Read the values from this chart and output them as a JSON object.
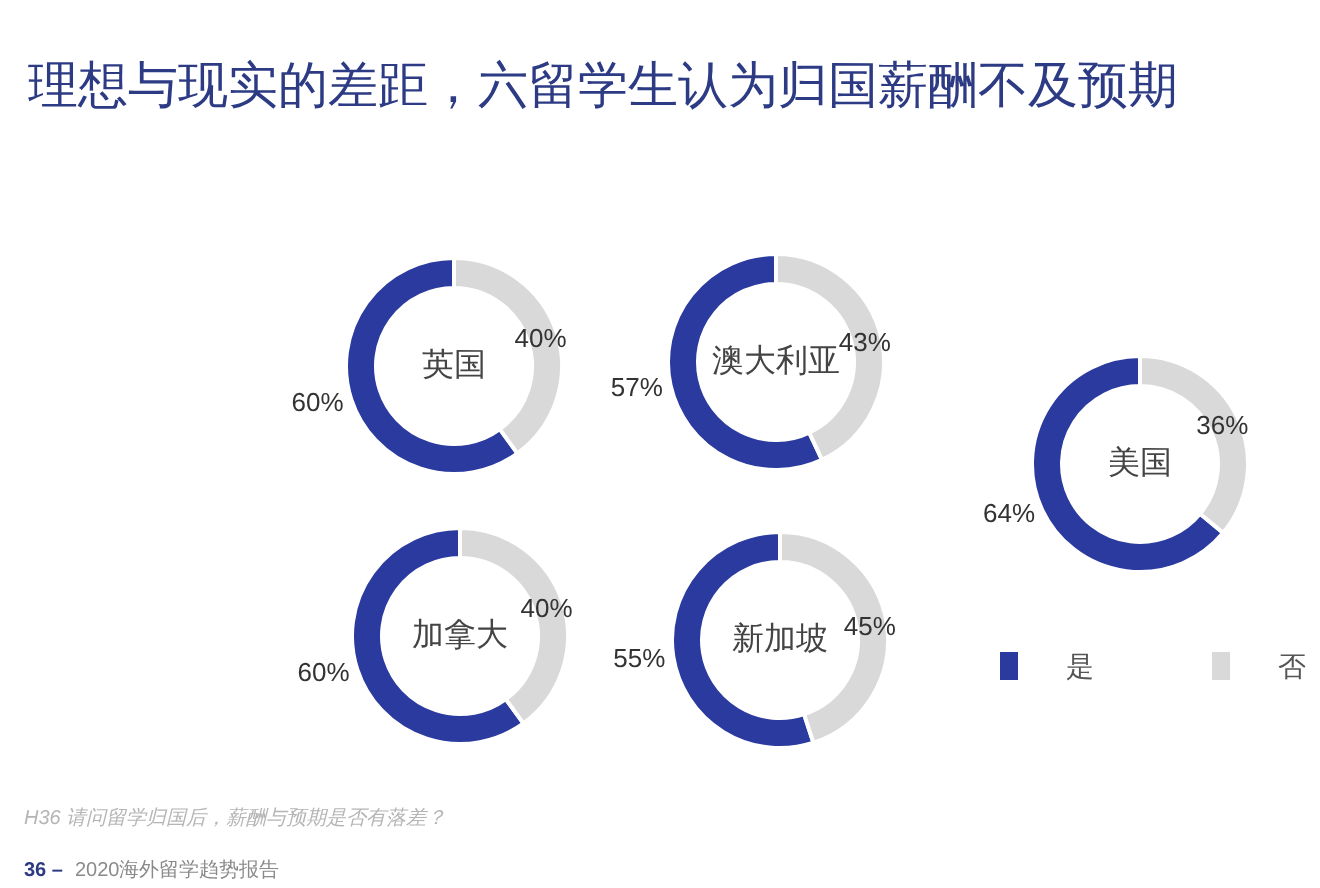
{
  "chart_data": [
    {
      "type": "other",
      "title": "理想与现实的差距，六留学生认为归国薪酬不及预期"
    },
    {
      "type": "donut",
      "title": "英国",
      "categories": [
        null,
        null
      ],
      "values": [
        60,
        40
      ],
      "colors": [
        "#2b3a9e",
        "#d9d9d9"
      ],
      "value_labels": [
        "60%",
        "40%"
      ]
    },
    {
      "type": "donut",
      "title": "澳大利亚",
      "categories": [
        null,
        null
      ],
      "values": [
        57,
        43
      ],
      "colors": [
        "#2b3a9e",
        "#d9d9d9"
      ],
      "value_labels": [
        "57%",
        "43%"
      ]
    },
    {
      "type": "donut",
      "title": "美国",
      "categories": [
        "是",
        "否"
      ],
      "values": [
        64,
        36
      ],
      "colors": [
        "#2b3a9e",
        "#d9d9d9"
      ],
      "value_labels": [
        "64%",
        "36%"
      ],
      "legend": "bottom"
    },
    {
      "type": "donut",
      "title": "加拿大",
      "categories": [
        null,
        null
      ],
      "values": [
        60,
        40
      ],
      "colors": [
        "#2b3a9e",
        "#d9d9d9"
      ],
      "value_labels": [
        "60%",
        "40%"
      ]
    },
    {
      "type": "donut",
      "title": "新加坡",
      "categories": [
        null,
        null
      ],
      "values": [
        55,
        45
      ],
      "colors": [
        "#2b3a9e",
        "#d9d9d9"
      ],
      "value_labels": [
        "55%",
        "45%"
      ]
    },
    {
      "type": "other",
      "annotations": [
        "H36 请问留学归国后，薪酬与预期是否有落差？",
        "36 –",
        "2020海外留学趋势报告"
      ]
    }
  ]
}
